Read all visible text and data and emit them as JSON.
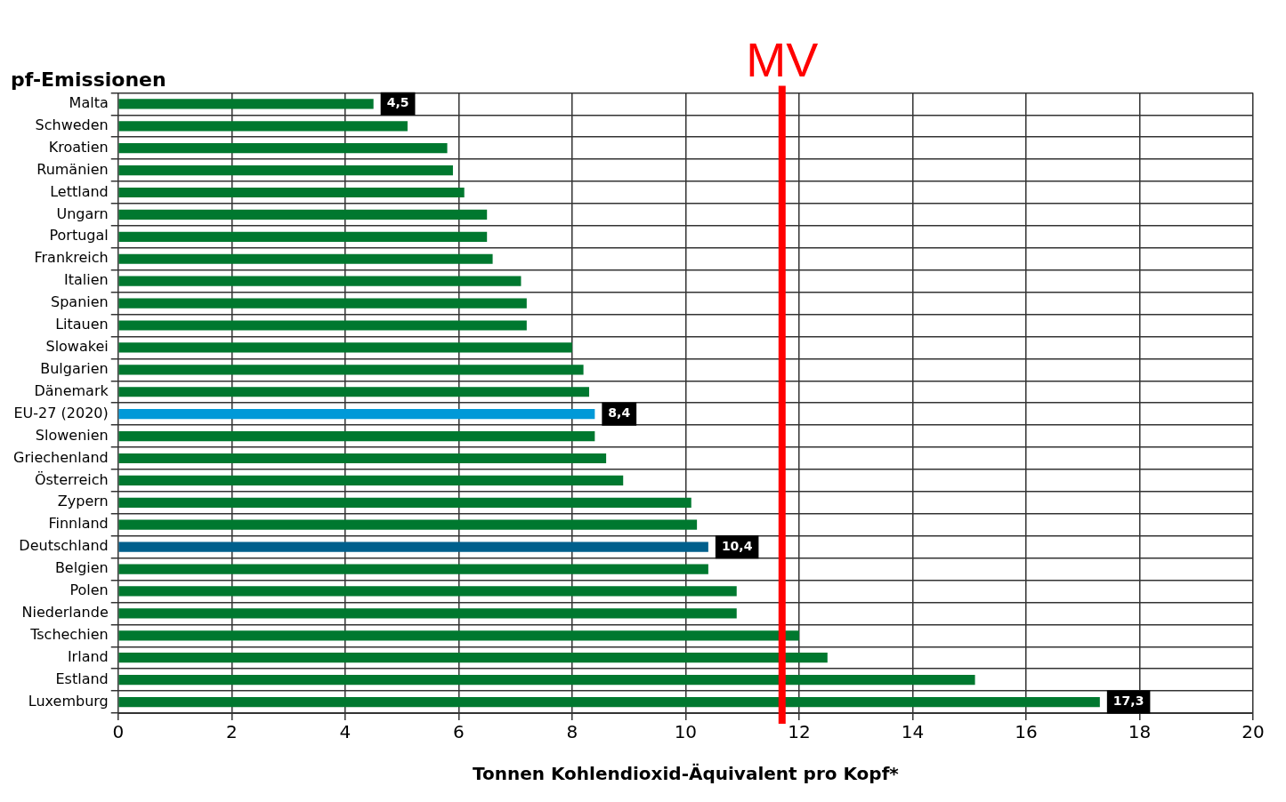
{
  "chart_data": {
    "type": "bar",
    "orientation": "horizontal",
    "title": "pf-Emissionen",
    "xlabel": "Tonnen Kohlendioxid-Äquivalent pro Kopf*",
    "categories": [
      "Malta",
      "Schweden",
      "Kroatien",
      "Rumänien",
      "Lettland",
      "Ungarn",
      "Portugal",
      "Frankreich",
      "Italien",
      "Spanien",
      "Litauen",
      "Slowakei",
      "Bulgarien",
      "Dänemark",
      "EU-27 (2020)",
      "Slowenien",
      "Griechenland",
      "Österreich",
      "Zypern",
      "Finnland",
      "Deutschland",
      "Belgien",
      "Polen",
      "Niederlande",
      "Tschechien",
      "Irland",
      "Estland",
      "Luxemburg"
    ],
    "values": [
      4.5,
      5.1,
      5.8,
      5.9,
      6.1,
      6.5,
      6.5,
      6.6,
      7.1,
      7.2,
      7.2,
      8.0,
      8.2,
      8.3,
      8.4,
      8.4,
      8.6,
      8.9,
      10.1,
      10.2,
      10.4,
      10.4,
      10.9,
      10.9,
      12.0,
      12.5,
      15.1,
      17.3
    ],
    "colors": [
      "#00782f",
      "#00782f",
      "#00782f",
      "#00782f",
      "#00782f",
      "#00782f",
      "#00782f",
      "#00782f",
      "#00782f",
      "#00782f",
      "#00782f",
      "#00782f",
      "#00782f",
      "#00782f",
      "#0099d8",
      "#00782f",
      "#00782f",
      "#00782f",
      "#00782f",
      "#00782f",
      "#005f8c",
      "#00782f",
      "#00782f",
      "#00782f",
      "#00782f",
      "#00782f",
      "#00782f",
      "#00782f"
    ],
    "value_labels": [
      "4,5",
      null,
      null,
      null,
      null,
      null,
      null,
      null,
      null,
      null,
      null,
      null,
      null,
      null,
      "8,4",
      null,
      null,
      null,
      null,
      null,
      "10,4",
      null,
      null,
      null,
      null,
      null,
      null,
      "17,3"
    ],
    "xlim": [
      0,
      20
    ],
    "xticks": [
      0,
      2,
      4,
      6,
      8,
      10,
      12,
      14,
      16,
      18,
      20
    ],
    "grid": true,
    "legend": false,
    "ref_lines": [
      {
        "axis": "x",
        "value": 11.7,
        "label": "MV",
        "color": "#ff0000"
      }
    ]
  }
}
